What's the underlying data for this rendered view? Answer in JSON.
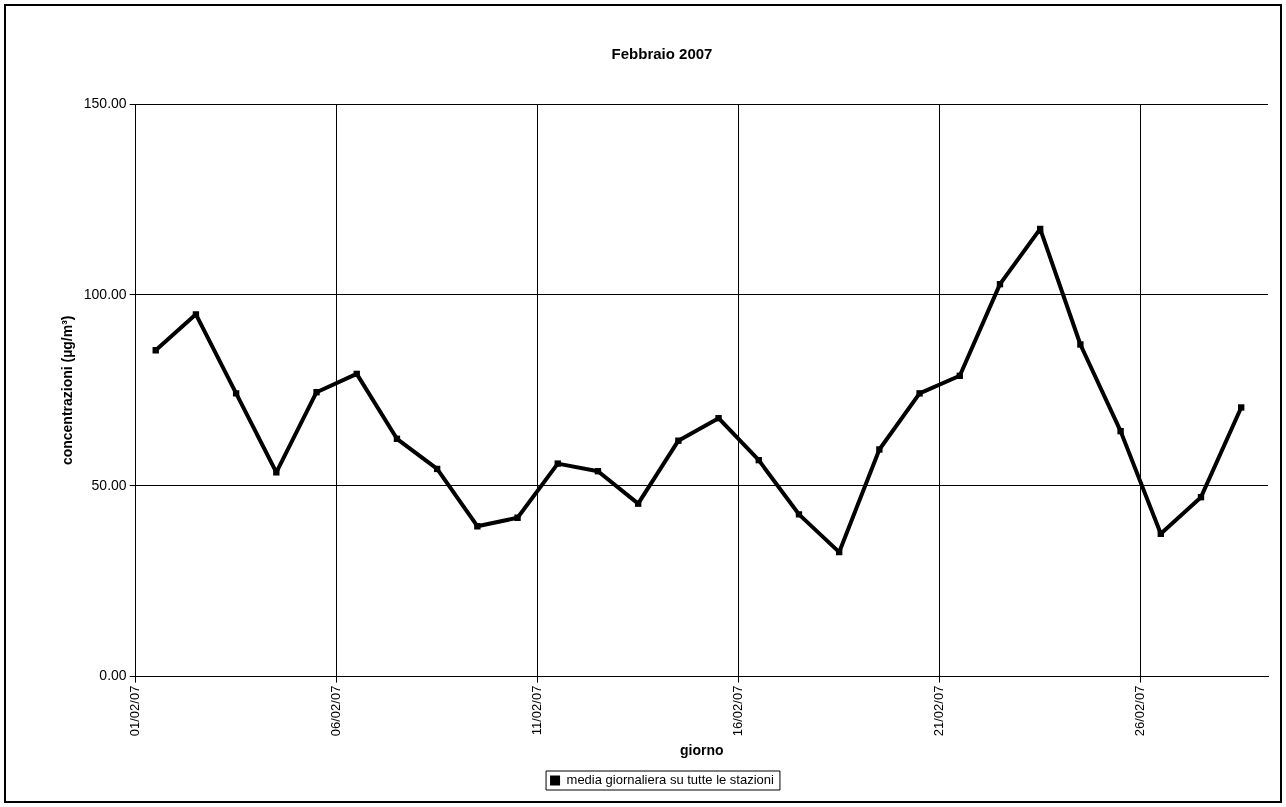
{
  "chart_data": {
    "type": "line",
    "title": "Febbraio 2007",
    "xlabel": "giorno",
    "ylabel": "concentrazioni (µg/m³)",
    "x": [
      "2007-02-01T12:00",
      "2007-02-02T12:00",
      "2007-02-03T12:00",
      "2007-02-04T12:00",
      "2007-02-05T12:00",
      "2007-02-06T12:00",
      "2007-02-07T12:00",
      "2007-02-08T12:00",
      "2007-02-09T12:00",
      "2007-02-10T12:00",
      "2007-02-11T12:00",
      "2007-02-12T12:00",
      "2007-02-13T12:00",
      "2007-02-14T12:00",
      "2007-02-15T12:00",
      "2007-02-16T12:00",
      "2007-02-17T12:00",
      "2007-02-18T12:00",
      "2007-02-19T12:00",
      "2007-02-20T12:00",
      "2007-02-21T12:00",
      "2007-02-22T12:00",
      "2007-02-23T12:00",
      "2007-02-24T12:00",
      "2007-02-25T12:00",
      "2007-02-26T12:00",
      "2007-02-27T12:00",
      "2007-02-28T12:00"
    ],
    "series": [
      {
        "name": "media giornaliera su tutte le stazioni",
        "color": "#000000",
        "values": [
          85.5,
          94.9,
          74.2,
          53.5,
          74.5,
          79.3,
          62.3,
          54.4,
          39.4,
          41.6,
          55.8,
          53.8,
          45.3,
          61.8,
          67.7,
          56.7,
          42.5,
          32.6,
          59.5,
          74.2,
          78.8,
          102.8,
          117.3,
          87.0,
          64.3,
          37.4,
          47.0,
          70.5
        ]
      }
    ],
    "xlim": [
      "2007-02-01",
      "2007-03-01T04:00"
    ],
    "xticks": [
      {
        "value": "2007-02-01",
        "label": "01/02/07"
      },
      {
        "value": "2007-02-06",
        "label": "06/02/07"
      },
      {
        "value": "2007-02-11",
        "label": "11/02/07"
      },
      {
        "value": "2007-02-16",
        "label": "16/02/07"
      },
      {
        "value": "2007-02-21",
        "label": "21/02/07"
      },
      {
        "value": "2007-02-26",
        "label": "26/02/07"
      }
    ],
    "ylim": [
      0,
      150
    ],
    "yticks": [
      {
        "value": 0,
        "label": "0.00"
      },
      {
        "value": 50,
        "label": "50.00"
      },
      {
        "value": 100,
        "label": "100.00"
      },
      {
        "value": 150,
        "label": "150.00"
      }
    ],
    "grid": true,
    "legend": "bottom",
    "marker": "square",
    "line_style": "solid"
  }
}
